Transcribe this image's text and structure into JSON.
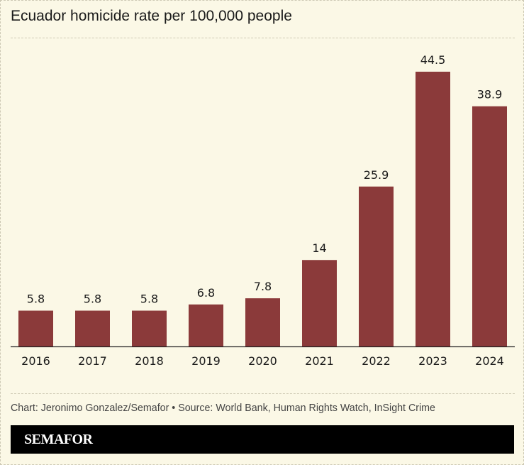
{
  "chart_data": {
    "type": "bar",
    "title": "Ecuador homicide rate per 100,000 people",
    "categories": [
      "2016",
      "2017",
      "2018",
      "2019",
      "2020",
      "2021",
      "2022",
      "2023",
      "2024"
    ],
    "values": [
      5.8,
      5.8,
      5.8,
      6.8,
      7.8,
      14,
      25.9,
      44.5,
      38.9
    ],
    "data_labels": [
      "5.8",
      "5.8",
      "5.8",
      "6.8",
      "7.8",
      "14",
      "25.9",
      "44.5",
      "38.9"
    ],
    "xlabel": "",
    "ylabel": "",
    "ylim": [
      0,
      44.5
    ],
    "grid": false,
    "bar_color": "#8b3a3a",
    "background_color": "#fbf8e6"
  },
  "footer": {
    "credit": "Chart: Jeronimo Gonzalez/Semafor • Source: World Bank, Human Rights Watch, InSight Crime",
    "brand": "SEMAFOR"
  }
}
